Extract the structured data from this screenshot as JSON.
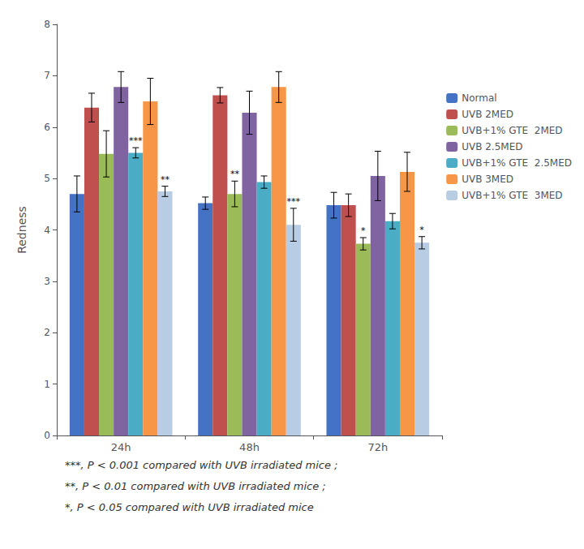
{
  "chart_data": {
    "type": "bar",
    "categories": [
      "24h",
      "48h",
      "72h"
    ],
    "series": [
      {
        "name": "Normal",
        "color": "#4472C4",
        "values": [
          4.7,
          4.52,
          4.48
        ],
        "errors": [
          0.35,
          0.12,
          0.25
        ]
      },
      {
        "name": "UVB 2MED",
        "color": "#C0504D",
        "values": [
          6.38,
          6.62,
          4.48
        ],
        "errors": [
          0.28,
          0.15,
          0.22
        ]
      },
      {
        "name": "UVB+1% GTE  2MED",
        "color": "#9BBB59",
        "values": [
          5.48,
          4.7,
          3.73
        ],
        "errors": [
          0.45,
          0.25,
          0.12
        ]
      },
      {
        "name": "UVB 2.5MED",
        "color": "#8064A2",
        "values": [
          6.78,
          6.28,
          5.05
        ],
        "errors": [
          0.3,
          0.42,
          0.48
        ]
      },
      {
        "name": "UVB+1% GTE  2.5MED",
        "color": "#4BACC6",
        "values": [
          5.5,
          4.93,
          4.17
        ],
        "errors": [
          0.1,
          0.12,
          0.15
        ]
      },
      {
        "name": "UVB 3MED",
        "color": "#F79646",
        "values": [
          6.5,
          6.78,
          5.13
        ],
        "errors": [
          0.45,
          0.3,
          0.38
        ]
      },
      {
        "name": "UVB+1% GTE  3MED",
        "color": "#B8CCE4",
        "values": [
          4.75,
          4.1,
          3.75
        ],
        "errors": [
          0.1,
          0.32,
          0.12
        ]
      }
    ],
    "annotations": [
      {
        "category": "24h",
        "series": "UVB+1% GTE  2.5MED",
        "text": "***"
      },
      {
        "category": "24h",
        "series": "UVB+1% GTE  3MED",
        "text": "**"
      },
      {
        "category": "48h",
        "series": "UVB+1% GTE  2MED",
        "text": "**"
      },
      {
        "category": "48h",
        "series": "UVB+1% GTE  3MED",
        "text": "***"
      },
      {
        "category": "72h",
        "series": "UVB+1% GTE  2MED",
        "text": "*"
      },
      {
        "category": "72h",
        "series": "UVB+1% GTE  3MED",
        "text": "*"
      }
    ],
    "ylabel": "Redness",
    "ylim": [
      0,
      8
    ],
    "yticks": [
      0,
      1,
      2,
      3,
      4,
      5,
      6,
      7,
      8
    ],
    "grid": false,
    "legend": "right",
    "footnotes": [
      "***, P < 0.001 compared with UVB irradiated mice ;",
      "**, P < 0.01 compared with UVB irradiated mice ;",
      "*, P < 0.05 compared with UVB irradiated mice"
    ]
  }
}
